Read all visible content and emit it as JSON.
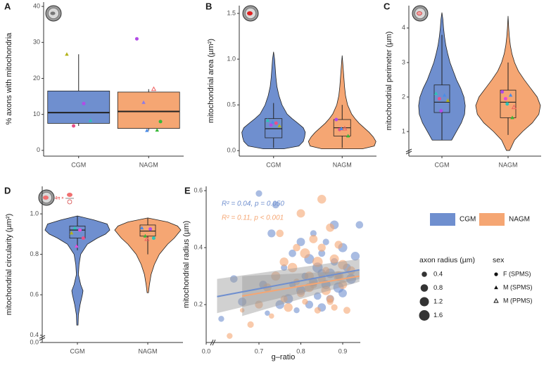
{
  "chart_data": [
    {
      "type": "box",
      "panel": "A",
      "ylabel": "% axons with mitochondria",
      "ylim": [
        -1.6,
        41.2
      ],
      "yticks": [
        0,
        10,
        20,
        30,
        40
      ],
      "series": [
        {
          "name": "CGM",
          "color": "#6f8fcf",
          "box": {
            "min": 6.8,
            "q1": 7.5,
            "median": 10.5,
            "q3": 16.5,
            "max": 26.7
          },
          "points": [
            {
              "value": 26.7,
              "color": "#b3b31a",
              "shape": "triangle"
            },
            {
              "value": 13,
              "color": "#b24ce6",
              "shape": "circle"
            },
            {
              "value": 6.8,
              "color": "#e8508a",
              "shape": "circle"
            },
            {
              "value": 8.3,
              "color": "#2ec4b6",
              "shape": "triangle"
            }
          ]
        },
        {
          "name": "NAGM",
          "color": "#f5a673",
          "box": {
            "min": 5.5,
            "q1": 6.1,
            "median": 10.8,
            "q3": 16.2,
            "max": 17
          },
          "points": [
            {
              "value": 31,
              "color": "#b24ce6",
              "shape": "circle"
            },
            {
              "value": 17,
              "color": "#f06060",
              "shape": "triangle-open"
            },
            {
              "value": 13.3,
              "color": "#8c7ce6",
              "shape": "triangle"
            },
            {
              "value": 8,
              "color": "#38b838",
              "shape": "circle"
            },
            {
              "value": 5.5,
              "color": "#4c8ce6",
              "shape": "triangle"
            },
            {
              "value": 5.6,
              "color": "#38b838",
              "shape": "triangle"
            }
          ]
        }
      ]
    },
    {
      "type": "violin",
      "panel": "B",
      "ylabel": "mitochondrial area (µm²)",
      "ylim": [
        -0.06,
        1.585
      ],
      "yticks": [
        {
          "value": 0,
          "label": "0.0"
        },
        0.5,
        {
          "value": 1,
          "label": "1.0"
        },
        1.5
      ],
      "series": [
        {
          "name": "CGM",
          "color": "#6f8fcf",
          "violin": {
            "y": [
              0.02,
              0.05,
              0.1,
              0.15,
              0.2,
              0.25,
              0.3,
              0.35,
              0.4,
              0.5,
              0.6,
              0.7,
              0.8,
              0.9,
              1.0,
              1.08
            ],
            "width": [
              0.3,
              0.75,
              0.88,
              0.92,
              0.94,
              0.88,
              0.72,
              0.55,
              0.4,
              0.25,
              0.16,
              0.1,
              0.07,
              0.05,
              0.03,
              0
            ]
          },
          "box": {
            "min": 0.03,
            "q1": 0.14,
            "median": 0.24,
            "q3": 0.35,
            "max": 0.52
          },
          "points": [
            {
              "value": 0.33,
              "color": "#2ec4b6",
              "shape": "triangle"
            },
            {
              "value": 0.3,
              "color": "#e8508a",
              "shape": "circle"
            },
            {
              "value": 0.28,
              "color": "#b24ce6",
              "shape": "circle"
            },
            {
              "value": 0.27,
              "color": "#b3b31a",
              "shape": "triangle"
            },
            {
              "value": 0.31,
              "color": "#4c8ce6",
              "shape": "triangle"
            }
          ]
        },
        {
          "name": "NAGM",
          "color": "#f5a673",
          "violin": {
            "y": [
              0.02,
              0.05,
              0.1,
              0.15,
              0.2,
              0.25,
              0.3,
              0.35,
              0.4,
              0.5,
              0.6,
              0.7,
              0.8,
              0.9,
              1.04
            ],
            "width": [
              0.6,
              0.95,
              1.0,
              0.92,
              0.8,
              0.65,
              0.5,
              0.38,
              0.28,
              0.16,
              0.1,
              0.07,
              0.05,
              0.03,
              0
            ]
          },
          "box": {
            "min": 0.03,
            "q1": 0.16,
            "median": 0.25,
            "q3": 0.34,
            "max": 0.5
          },
          "points": [
            {
              "value": 0.34,
              "color": "#b24ce6",
              "shape": "circle"
            },
            {
              "value": 0.24,
              "color": "#f06060",
              "shape": "triangle-open"
            },
            {
              "value": 0.23,
              "color": "#e8508a",
              "shape": "circle"
            },
            {
              "value": 0.16,
              "color": "#38b838",
              "shape": "triangle"
            },
            {
              "value": 0.24,
              "color": "#4c8ce6",
              "shape": "triangle"
            }
          ]
        }
      ]
    },
    {
      "type": "violin",
      "panel": "C",
      "ylabel": "mitochondrial perimeter (µm)",
      "y_break": true,
      "ylim": [
        0.286,
        4.65
      ],
      "yticks": [
        1,
        2,
        3,
        4
      ],
      "series": [
        {
          "name": "CGM",
          "color": "#6f8fcf",
          "violin": {
            "y": [
              0.75,
              1.0,
              1.25,
              1.5,
              1.75,
              2.0,
              2.25,
              2.5,
              2.75,
              3.0,
              3.25,
              3.5,
              3.75,
              4.0,
              4.25,
              4.45
            ],
            "width": [
              0.3,
              0.45,
              0.6,
              0.7,
              0.72,
              0.68,
              0.58,
              0.45,
              0.35,
              0.25,
              0.18,
              0.12,
              0.08,
              0.05,
              0.03,
              0
            ]
          },
          "box": {
            "min": 0.75,
            "q1": 1.55,
            "median": 1.85,
            "q3": 2.35,
            "max": 3.8
          },
          "points": [
            {
              "value": 2.1,
              "color": "#2ec4b6",
              "shape": "triangle"
            },
            {
              "value": 2.05,
              "color": "#4c8ce6",
              "shape": "triangle"
            },
            {
              "value": 1.95,
              "color": "#e8508a",
              "shape": "circle"
            },
            {
              "value": 1.9,
              "color": "#b3b31a",
              "shape": "triangle"
            },
            {
              "value": 1.6,
              "color": "#b24ce6",
              "shape": "circle"
            }
          ]
        },
        {
          "name": "NAGM",
          "color": "#f5a673",
          "violin": {
            "y": [
              0.45,
              0.75,
              1.0,
              1.25,
              1.5,
              1.75,
              2.0,
              2.25,
              2.5,
              2.75,
              3.0,
              3.25,
              3.5,
              3.75,
              4.0,
              4.35
            ],
            "width": [
              0.05,
              0.2,
              0.45,
              0.75,
              0.95,
              1.0,
              0.9,
              0.7,
              0.5,
              0.32,
              0.2,
              0.12,
              0.07,
              0.04,
              0.02,
              0
            ]
          },
          "box": {
            "min": 0.9,
            "q1": 1.4,
            "median": 1.85,
            "q3": 2.2,
            "max": 3.0
          },
          "points": [
            {
              "value": 2.15,
              "color": "#b24ce6",
              "shape": "circle"
            },
            {
              "value": 2.05,
              "color": "#4c8ce6",
              "shape": "triangle"
            },
            {
              "value": 1.95,
              "color": "#e64cd9",
              "shape": "circle"
            },
            {
              "value": 1.7,
              "color": "#f06060",
              "shape": "triangle-open"
            },
            {
              "value": 1.8,
              "color": "#2ec4b6",
              "shape": "circle"
            },
            {
              "value": 1.4,
              "color": "#38b838",
              "shape": "triangle"
            }
          ]
        }
      ]
    },
    {
      "type": "violin",
      "panel": "D",
      "ylabel": "mitochondrial circularity (µm²)",
      "formula": "4π ×",
      "y_break": true,
      "ylim": [
        0.364,
        1.136
      ],
      "yticks": [
        0.4,
        0.6,
        0.8,
        {
          "value": 1,
          "label": "1.0"
        }
      ],
      "break_tick": {
        "value": 0,
        "label": "0.0"
      },
      "series": [
        {
          "name": "CGM",
          "color": "#6f8fcf",
          "violin": {
            "y": [
              0.45,
              0.5,
              0.55,
              0.6,
              0.62,
              0.65,
              0.7,
              0.75,
              0.8,
              0.85,
              0.88,
              0.9,
              0.92,
              0.95,
              0.97,
              0.99
            ],
            "width": [
              0.02,
              0.03,
              0.08,
              0.15,
              0.17,
              0.1,
              0.03,
              0.05,
              0.1,
              0.3,
              0.6,
              0.85,
              0.98,
              0.9,
              0.5,
              0
            ]
          },
          "box": {
            "min": 0.82,
            "q1": 0.88,
            "median": 0.92,
            "q3": 0.94,
            "max": 0.99
          },
          "points": [
            {
              "value": 0.905,
              "color": "#b3b31a",
              "shape": "triangle"
            },
            {
              "value": 0.92,
              "color": "#e64cd9",
              "shape": "circle"
            },
            {
              "value": 0.93,
              "color": "#2ec4b6",
              "shape": "triangle"
            },
            {
              "value": 0.88,
              "color": "#e8508a",
              "shape": "circle"
            },
            {
              "value": 0.84,
              "color": "#e64cd9",
              "shape": "triangle"
            }
          ]
        },
        {
          "name": "NAGM",
          "color": "#f5a673",
          "violin": {
            "y": [
              0.61,
              0.65,
              0.7,
              0.75,
              0.8,
              0.85,
              0.88,
              0.9,
              0.92,
              0.94,
              0.96,
              0.98
            ],
            "width": [
              0.02,
              0.05,
              0.1,
              0.2,
              0.35,
              0.6,
              0.8,
              0.9,
              1.0,
              0.9,
              0.6,
              0
            ]
          },
          "box": {
            "min": 0.8,
            "q1": 0.89,
            "median": 0.915,
            "q3": 0.945,
            "max": 0.98
          },
          "points": [
            {
              "value": 0.93,
              "color": "#4c8ce6",
              "shape": "triangle"
            },
            {
              "value": 0.925,
              "color": "#b24ce6",
              "shape": "circle"
            },
            {
              "value": 0.89,
              "color": "#38b838",
              "shape": "triangle"
            },
            {
              "value": 0.88,
              "color": "#2ec4b6",
              "shape": "circle"
            },
            {
              "value": 0.875,
              "color": "#f06060",
              "shape": "triangle-open"
            }
          ]
        }
      ]
    },
    {
      "type": "scatter",
      "panel": "E",
      "xlabel": "g–ratio",
      "ylabel": "mitochondrial radius (µm)",
      "x_break": true,
      "xlim": [
        0.574,
        0.942
      ],
      "xticks": [
        0.7,
        0.8,
        0.9
      ],
      "break_tick": {
        "value": 0,
        "label": "0.0"
      },
      "ylim": [
        0.067,
        0.615
      ],
      "yticks": [
        0.2,
        0.4,
        0.6
      ],
      "series": [
        {
          "name": "CGM",
          "color": "#6f8fcf",
          "annotation": "R² = 0.04, p = 0.050",
          "x": [
            0.61,
            0.64,
            0.66,
            0.7,
            0.71,
            0.72,
            0.74,
            0.75,
            0.76,
            0.77,
            0.78,
            0.79,
            0.8,
            0.8,
            0.81,
            0.82,
            0.82,
            0.83,
            0.83,
            0.84,
            0.84,
            0.85,
            0.85,
            0.86,
            0.86,
            0.87,
            0.87,
            0.88,
            0.88,
            0.89,
            0.89,
            0.9,
            0.9,
            0.91,
            0.92,
            0.93,
            0.94,
            0.78,
            0.73,
            0.85
          ],
          "y": [
            0.15,
            0.29,
            0.21,
            0.59,
            0.27,
            0.17,
            0.55,
            0.2,
            0.33,
            0.22,
            0.38,
            0.18,
            0.42,
            0.25,
            0.3,
            0.2,
            0.36,
            0.45,
            0.28,
            0.23,
            0.33,
            0.38,
            0.19,
            0.27,
            0.42,
            0.31,
            0.22,
            0.35,
            0.48,
            0.26,
            0.3,
            0.24,
            0.4,
            0.33,
            0.29,
            0.37,
            0.48,
            0.27,
            0.45,
            0.31
          ],
          "size": [
            0.5,
            0.8,
            1.0,
            0.6,
            0.9,
            0.4,
            0.7,
            1.1,
            0.6,
            1.3,
            0.8,
            0.5,
            1.0,
            1.2,
            0.7,
            0.9,
            1.4,
            0.6,
            1.1,
            0.8,
            1.5,
            0.7,
            1.0,
            1.2,
            0.6,
            1.3,
            0.9,
            0.8,
            1.1,
            1.6,
            0.7,
            1.0,
            1.2,
            0.9,
            1.4,
            1.1,
            0.8,
            0.6,
            0.9,
            1.0
          ],
          "fit": {
            "x": [
              0.6,
              0.94
            ],
            "y": [
              0.228,
              0.322
            ],
            "lower": [
              0.17,
              0.29
            ],
            "upper": [
              0.29,
              0.36
            ]
          }
        },
        {
          "name": "NAGM",
          "color": "#f5a673",
          "annotation": "R² = 0.11, p < 0.001",
          "x": [
            0.63,
            0.66,
            0.68,
            0.7,
            0.72,
            0.73,
            0.74,
            0.75,
            0.76,
            0.77,
            0.78,
            0.79,
            0.8,
            0.8,
            0.81,
            0.81,
            0.82,
            0.83,
            0.83,
            0.84,
            0.84,
            0.85,
            0.85,
            0.86,
            0.86,
            0.87,
            0.87,
            0.88,
            0.88,
            0.89,
            0.89,
            0.9,
            0.9,
            0.91,
            0.92,
            0.79,
            0.82,
            0.85,
            0.76,
            0.87
          ],
          "y": [
            0.09,
            0.18,
            0.13,
            0.2,
            0.26,
            0.16,
            0.3,
            0.45,
            0.22,
            0.19,
            0.33,
            0.28,
            0.52,
            0.24,
            0.38,
            0.21,
            0.3,
            0.43,
            0.27,
            0.35,
            0.18,
            0.57,
            0.4,
            0.25,
            0.32,
            0.47,
            0.22,
            0.36,
            0.19,
            0.3,
            0.41,
            0.27,
            0.34,
            0.18,
            0.32,
            0.4,
            0.26,
            0.29,
            0.35,
            0.21
          ],
          "size": [
            0.5,
            0.3,
            0.6,
            0.9,
            1.0,
            0.4,
            1.2,
            0.8,
            0.7,
            1.1,
            1.3,
            0.6,
            1.0,
            0.9,
            1.4,
            0.5,
            1.2,
            1.0,
            0.8,
            1.5,
            0.6,
            1.1,
            0.9,
            1.3,
            0.7,
            1.0,
            0.8,
            1.2,
            0.6,
            1.4,
            0.9,
            1.1,
            1.3,
            0.7,
            1.0,
            0.8,
            1.2,
            0.9,
            1.1,
            0.6
          ],
          "fit": {
            "x": [
              0.66,
              0.94
            ],
            "y": [
              0.23,
              0.3
            ],
            "lower": [
              0.16,
              0.28
            ],
            "upper": [
              0.3,
              0.32
            ]
          }
        }
      ],
      "size_legend": {
        "title": "axon radius (µm)",
        "values": [
          0.4,
          0.8,
          1.2,
          1.6
        ]
      },
      "shape_legend": {
        "title": "sex",
        "entries": [
          {
            "label": "F (SPMS)",
            "shape": "circle"
          },
          {
            "label": "M (SPMS)",
            "shape": "triangle"
          },
          {
            "label": "M (PPMS)",
            "shape": "triangle-open"
          }
        ]
      }
    }
  ]
}
